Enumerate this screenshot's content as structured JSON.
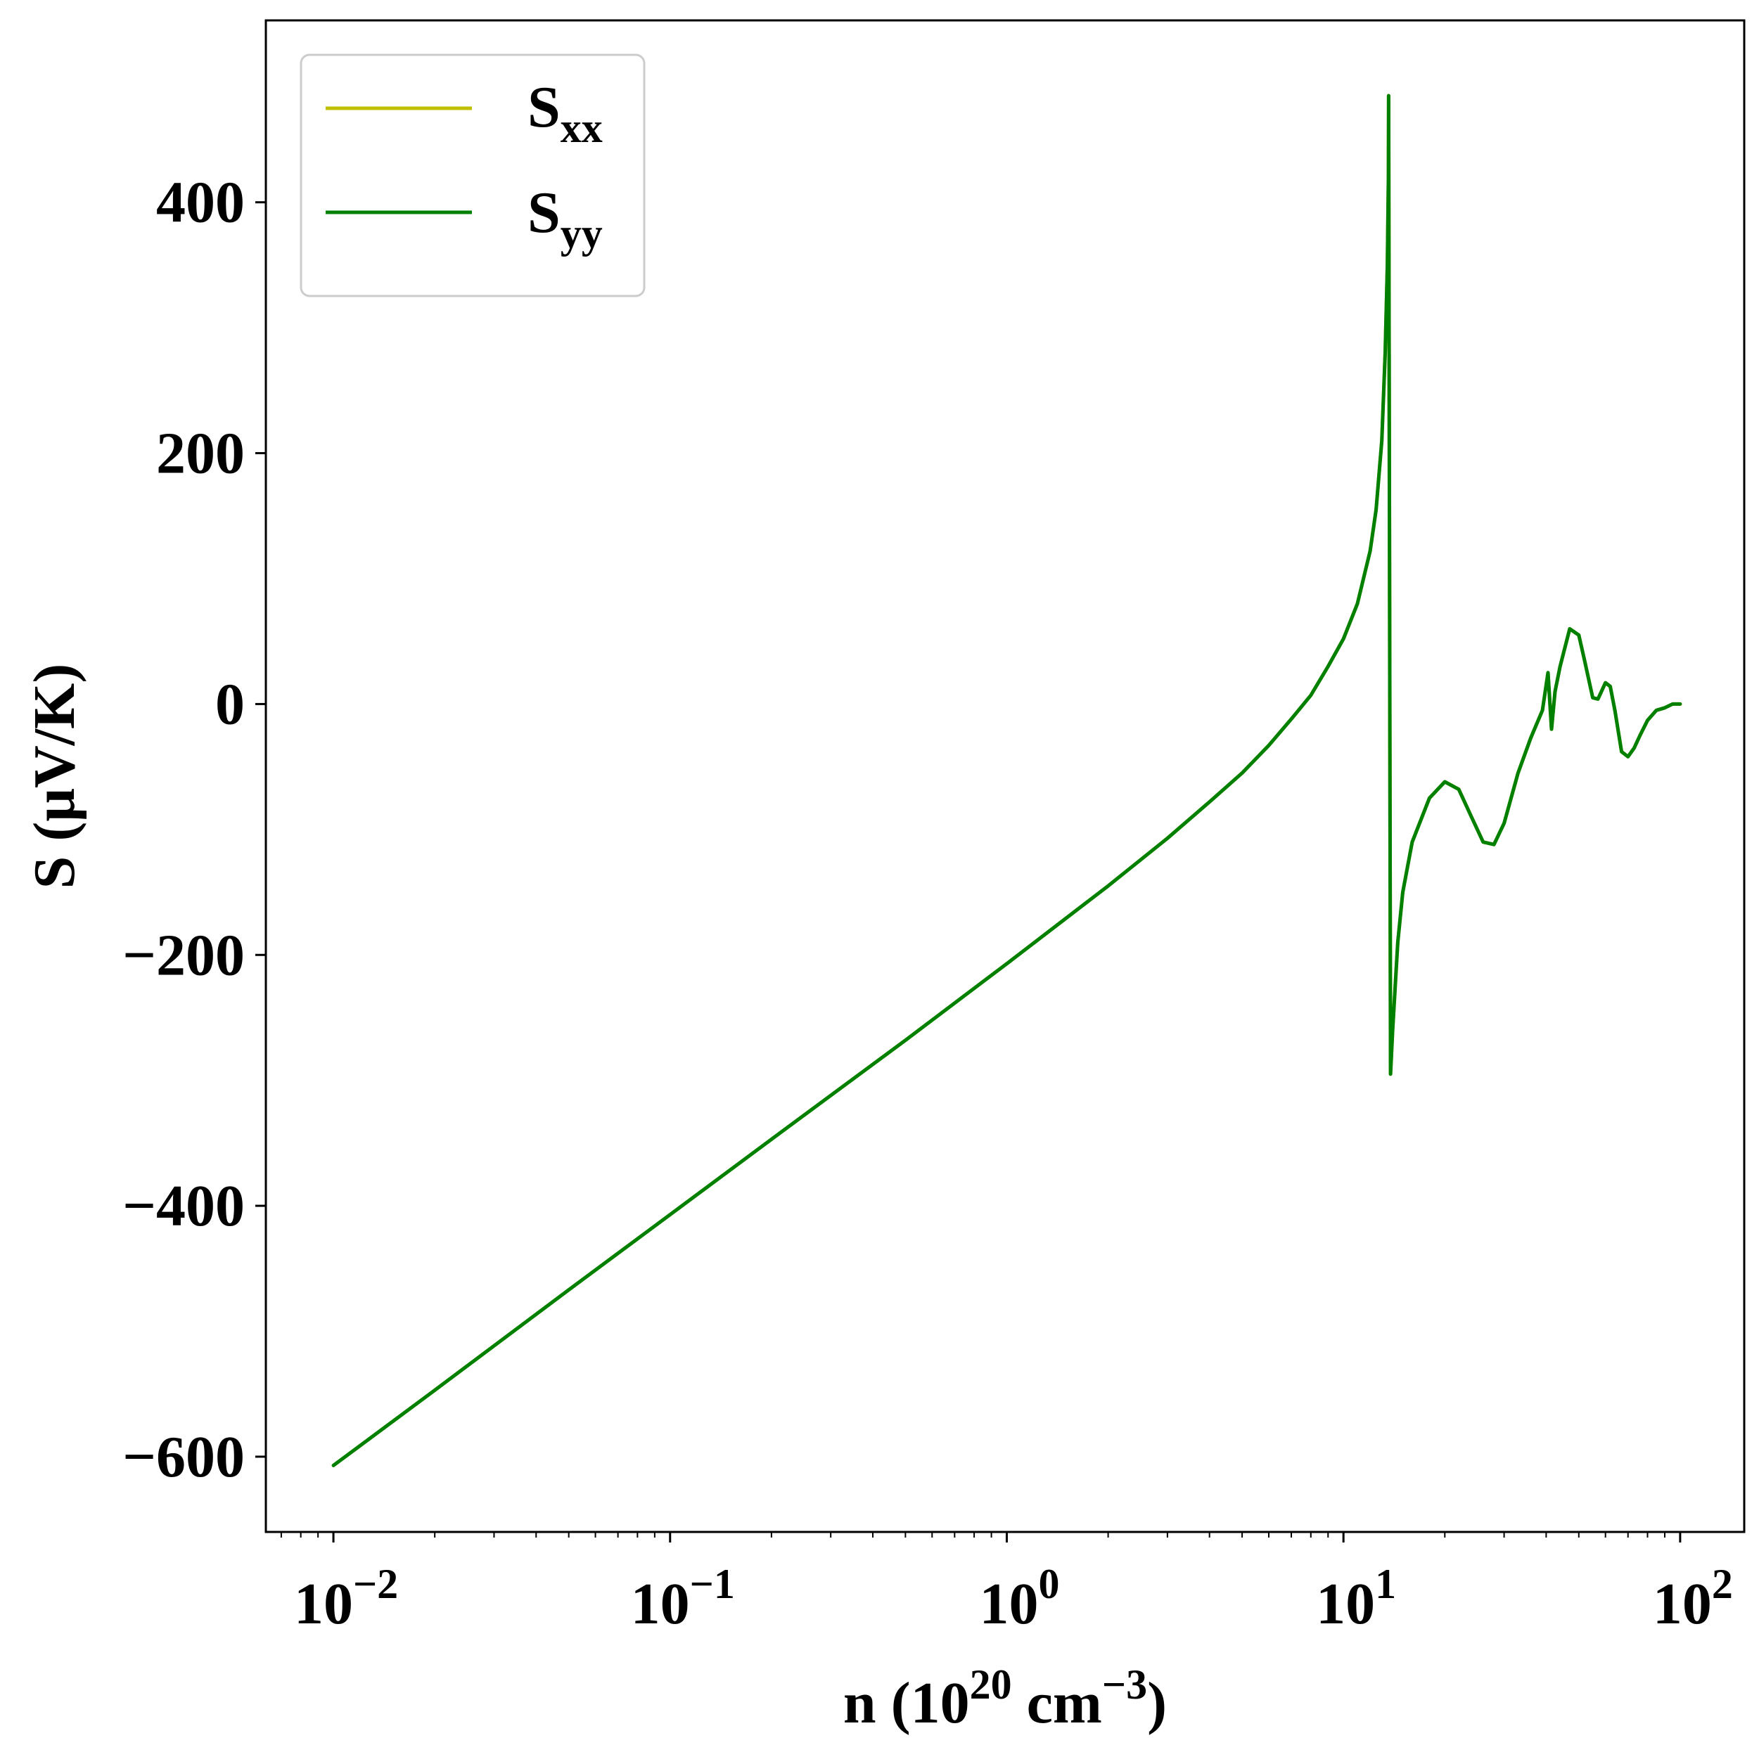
{
  "chart_data": {
    "type": "line",
    "title": "",
    "xlabel": {
      "base": "n (10",
      "exp1": "20",
      "mid": " cm",
      "exp2": "−3",
      "tail": ")"
    },
    "ylabel": "S (μV/K)",
    "xscale": "log",
    "xlim": [
      0.0063,
      155
    ],
    "ylim": [
      -660,
      545
    ],
    "x_ticks": [
      {
        "value": 0.01,
        "base": "10",
        "exp": "−2"
      },
      {
        "value": 0.1,
        "base": "10",
        "exp": "−1"
      },
      {
        "value": 1,
        "base": "10",
        "exp": "0"
      },
      {
        "value": 10,
        "base": "10",
        "exp": "1"
      },
      {
        "value": 100,
        "base": "10",
        "exp": "2"
      }
    ],
    "y_ticks": [
      {
        "value": 400,
        "label": "400"
      },
      {
        "value": 200,
        "label": "200"
      },
      {
        "value": 0,
        "label": "0"
      },
      {
        "value": -200,
        "label": "−200"
      },
      {
        "value": -400,
        "label": "−400"
      },
      {
        "value": -600,
        "label": "−600"
      }
    ],
    "grid": false,
    "legend": {
      "placement": "top-left",
      "entries": [
        {
          "base": "S",
          "sub": "xx",
          "color": "#bfbf00"
        },
        {
          "base": "S",
          "sub": "yy",
          "color": "#008000"
        }
      ]
    },
    "series": [
      {
        "name": "Sxx",
        "color": "#bfbf00",
        "x": [
          0.01,
          0.02,
          0.05,
          0.1,
          0.2,
          0.5,
          1,
          2,
          3,
          4,
          5,
          6,
          7,
          8,
          9,
          10,
          11,
          12,
          12.5,
          13,
          13.3,
          13.5,
          13.6,
          13.62,
          13.8,
          14,
          14.5,
          15,
          16,
          18,
          20,
          22,
          24,
          26,
          28,
          30,
          33,
          36,
          39,
          40.5,
          41.5,
          42.5,
          44,
          47,
          50,
          52,
          55,
          57,
          60,
          62,
          64,
          67,
          70,
          73,
          76,
          80,
          85,
          90,
          95,
          100
        ],
        "y": [
          -607,
          -547,
          -467,
          -407,
          -347,
          -268,
          -207,
          -145,
          -107,
          -78,
          -55,
          -33,
          -12,
          7,
          30,
          52,
          80,
          122,
          155,
          210,
          280,
          350,
          420,
          485,
          -295,
          -260,
          -190,
          -150,
          -110,
          -75,
          -62,
          -68,
          -90,
          -110,
          -112,
          -95,
          -55,
          -27,
          -5,
          25,
          -20,
          10,
          30,
          60,
          55,
          35,
          5,
          4,
          17,
          14,
          -5,
          -38,
          -42,
          -35,
          -25,
          -13,
          -5,
          -3,
          0,
          0
        ]
      },
      {
        "name": "Syy",
        "color": "#008000",
        "x": [
          0.01,
          0.02,
          0.05,
          0.1,
          0.2,
          0.5,
          1,
          2,
          3,
          4,
          5,
          6,
          7,
          8,
          9,
          10,
          11,
          12,
          12.5,
          13,
          13.3,
          13.5,
          13.6,
          13.62,
          13.8,
          14,
          14.5,
          15,
          16,
          18,
          20,
          22,
          24,
          26,
          28,
          30,
          33,
          36,
          39,
          40.5,
          41.5,
          42.5,
          44,
          47,
          50,
          52,
          55,
          57,
          60,
          62,
          64,
          67,
          70,
          73,
          76,
          80,
          85,
          90,
          95,
          100
        ],
        "y": [
          -607,
          -547,
          -467,
          -407,
          -347,
          -268,
          -207,
          -145,
          -107,
          -78,
          -55,
          -33,
          -12,
          7,
          30,
          52,
          80,
          122,
          155,
          210,
          280,
          350,
          420,
          485,
          -295,
          -260,
          -190,
          -150,
          -110,
          -75,
          -62,
          -68,
          -90,
          -110,
          -112,
          -95,
          -55,
          -27,
          -5,
          25,
          -20,
          10,
          30,
          60,
          55,
          35,
          5,
          4,
          17,
          14,
          -5,
          -38,
          -42,
          -35,
          -25,
          -13,
          -5,
          -3,
          0,
          0
        ]
      }
    ]
  }
}
